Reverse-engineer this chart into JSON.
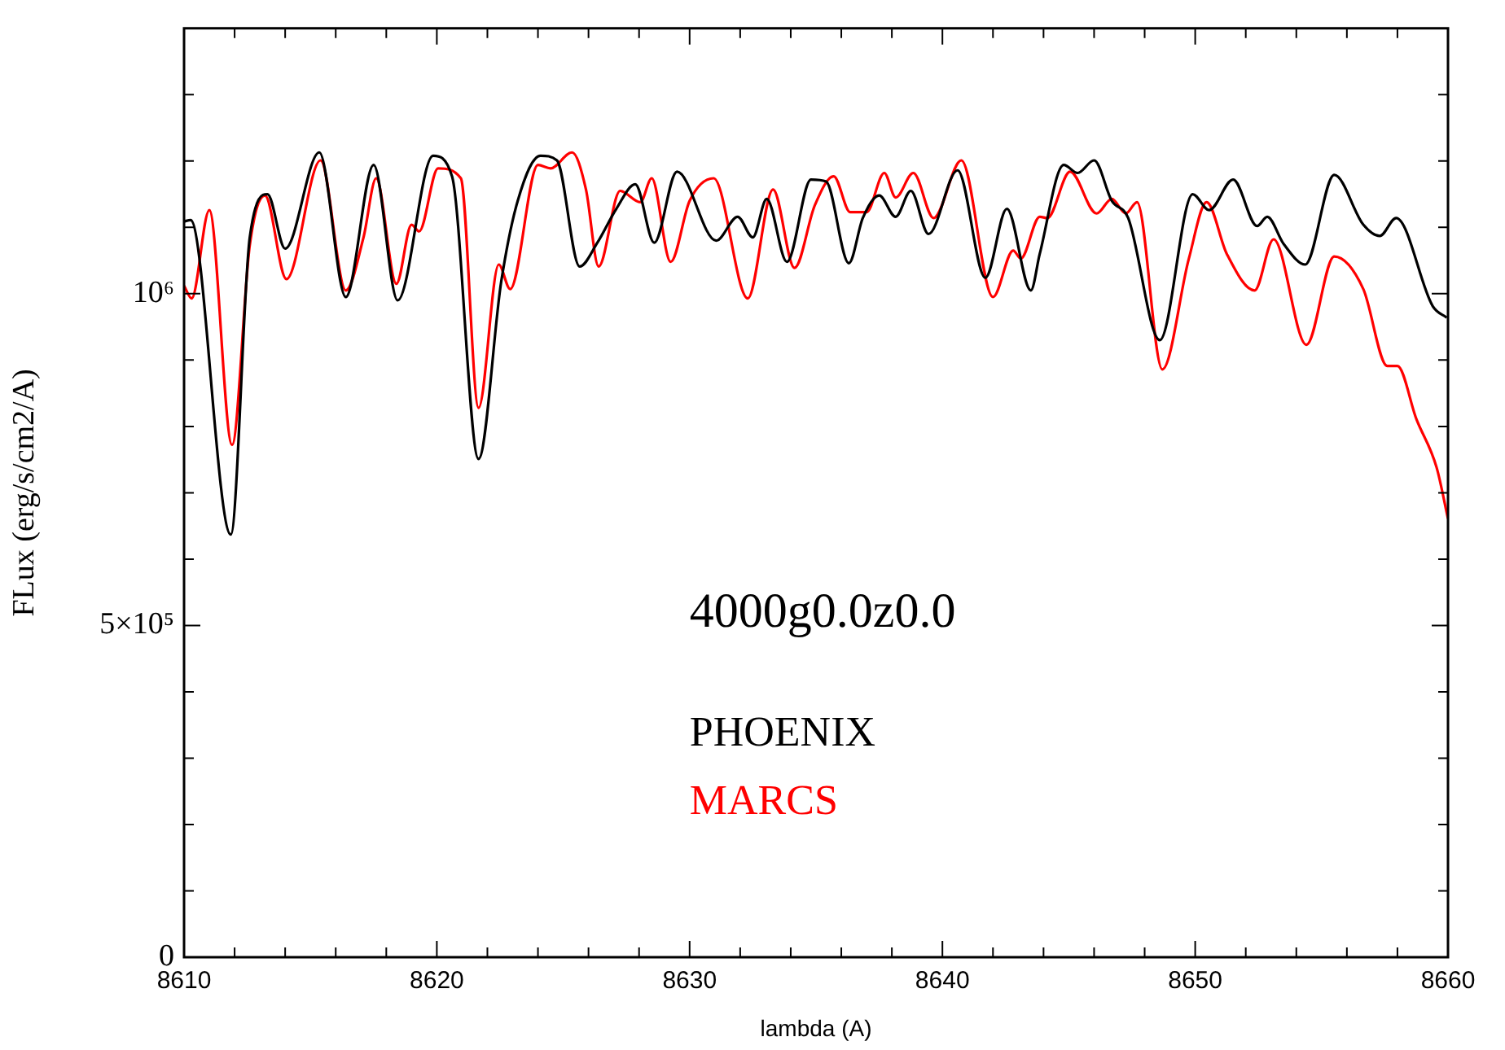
{
  "chart_data": {
    "type": "line",
    "xlabel": "lambda (A)",
    "ylabel": "FLux (erg/s/cm2/A)",
    "annotations": [
      "4000g0.0z0.0"
    ],
    "xlim": [
      8610,
      8660
    ],
    "ylim": [
      0,
      1400000
    ],
    "xticks": [
      8610,
      {
        "value": 8612,
        "label": null
      },
      {
        "value": 8614,
        "label": null
      },
      {
        "value": 8616,
        "label": null
      },
      {
        "value": 8618,
        "label": null
      },
      8620,
      {
        "value": 8622,
        "label": null
      },
      {
        "value": 8624,
        "label": null
      },
      {
        "value": 8626,
        "label": null
      },
      {
        "value": 8628,
        "label": null
      },
      8630,
      {
        "value": 8632,
        "label": null
      },
      {
        "value": 8634,
        "label": null
      },
      {
        "value": 8636,
        "label": null
      },
      {
        "value": 8638,
        "label": null
      },
      8640,
      {
        "value": 8642,
        "label": null
      },
      {
        "value": 8644,
        "label": null
      },
      {
        "value": 8646,
        "label": null
      },
      {
        "value": 8648,
        "label": null
      },
      8650,
      {
        "value": 8652,
        "label": null
      },
      {
        "value": 8654,
        "label": null
      },
      {
        "value": 8656,
        "label": null
      },
      {
        "value": 8658,
        "label": null
      },
      8660
    ],
    "yticks": [
      0,
      {
        "value": 100000,
        "label": null
      },
      {
        "value": 200000,
        "label": null
      },
      {
        "value": 300000,
        "label": null
      },
      {
        "value": 400000,
        "label": null
      },
      {
        "value": 500000,
        "label": "5×10⁵"
      },
      {
        "value": 600000,
        "label": null
      },
      {
        "value": 700000,
        "label": null
      },
      {
        "value": 800000,
        "label": null
      },
      {
        "value": 900000,
        "label": null
      },
      {
        "value": 1000000,
        "label": "10⁶"
      },
      {
        "value": 1100000,
        "label": null
      },
      {
        "value": 1200000,
        "label": null
      },
      {
        "value": 1300000,
        "label": null
      }
    ],
    "grid": false,
    "legend": "bottom",
    "marker": "none",
    "line_style": "solid",
    "series": [
      {
        "name": "PHOENIX",
        "color": "#000000",
        "x": [
          8610,
          8610.26,
          8611.85,
          8612.6,
          8613.3,
          8614,
          8615.35,
          8616.4,
          8617.5,
          8618.45,
          8619.85,
          8620.6,
          8621.65,
          8622.55,
          8623.2,
          8624.1,
          8624.75,
          8625.65,
          8626.35,
          8627.1,
          8627.85,
          8628.6,
          8629.5,
          8631.05,
          8631.9,
          8632.5,
          8633.05,
          8633.85,
          8634.8,
          8635.4,
          8636.3,
          8636.85,
          8637.5,
          8638.15,
          8638.75,
          8639.45,
          8640.6,
          8641.7,
          8642.55,
          8643.5,
          8643.85,
          8644.8,
          8645.35,
          8646,
          8646.7,
          8647.35,
          8648.6,
          8649.9,
          8650.55,
          8651.5,
          8652.45,
          8652.85,
          8653.5,
          8654.35,
          8655.5,
          8656.65,
          8657.3,
          8657.95,
          8659.4,
          8659.95
        ],
        "values": [
          1109000,
          1111000,
          637000,
          1085000,
          1150000,
          1068000,
          1213000,
          995000,
          1194000,
          990000,
          1208000,
          1177000,
          751000,
          1019000,
          1140000,
          1208000,
          1201000,
          1041000,
          1077000,
          1128000,
          1165000,
          1077000,
          1184000,
          1080000,
          1116000,
          1085000,
          1143000,
          1048000,
          1172000,
          1169000,
          1046000,
          1114000,
          1148000,
          1116000,
          1155000,
          1090000,
          1186000,
          1024000,
          1128000,
          1005000,
          1060000,
          1194000,
          1182000,
          1201000,
          1140000,
          1114000,
          930000,
          1150000,
          1126000,
          1172000,
          1102000,
          1116000,
          1075000,
          1044000,
          1179000,
          1104000,
          1087000,
          1114000,
          981000,
          964000
        ]
      },
      {
        "name": "MARCS",
        "color": "#ff0000",
        "x": [
          8610,
          8610.3,
          8611,
          8611.9,
          8612.6,
          8613.2,
          8614.05,
          8615.4,
          8616.4,
          8617.1,
          8617.6,
          8618.4,
          8619,
          8619.3,
          8620.05,
          8620.95,
          8621.65,
          8622.45,
          8622.9,
          8624,
          8624.5,
          8625.35,
          8625.9,
          8626.4,
          8627.25,
          8628.05,
          8628.5,
          8629.25,
          8630,
          8630.95,
          8632.3,
          8633.3,
          8634.15,
          8634.95,
          8635.7,
          8636.35,
          8637,
          8637.7,
          8638.15,
          8638.85,
          8639.65,
          8640.75,
          8642,
          8642.8,
          8643.1,
          8643.85,
          8644.15,
          8645.05,
          8646.1,
          8646.7,
          8647.25,
          8647.7,
          8648.7,
          8649.75,
          8650.45,
          8651.25,
          8652.35,
          8653.1,
          8654.4,
          8655.5,
          8656.65,
          8657.6,
          8658,
          8658.75,
          8659.55,
          8660
        ],
        "values": [
          1012000,
          993000,
          1126000,
          772000,
          1073000,
          1148000,
          1022000,
          1201000,
          1005000,
          1085000,
          1174000,
          1015000,
          1104000,
          1094000,
          1189000,
          1174000,
          828000,
          1044000,
          1007000,
          1194000,
          1189000,
          1213000,
          1157000,
          1041000,
          1155000,
          1138000,
          1174000,
          1048000,
          1140000,
          1174000,
          993000,
          1157000,
          1039000,
          1133000,
          1177000,
          1123000,
          1123000,
          1182000,
          1145000,
          1182000,
          1114000,
          1201000,
          995000,
          1065000,
          1053000,
          1116000,
          1114000,
          1184000,
          1121000,
          1143000,
          1121000,
          1138000,
          886000,
          1053000,
          1138000,
          1060000,
          1005000,
          1082000,
          923000,
          1056000,
          1007000,
          891000,
          891000,
          811000,
          738000,
          661000
        ]
      }
    ]
  }
}
